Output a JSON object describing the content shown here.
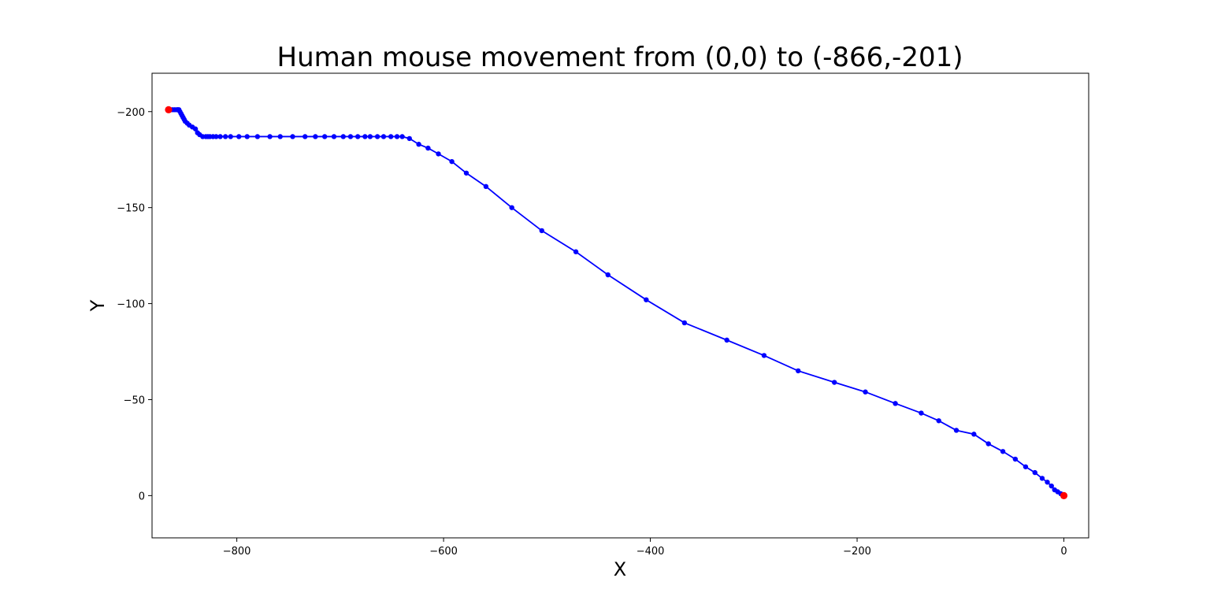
{
  "chart_data": {
    "type": "line",
    "title": "Human mouse movement from (0,0) to (-866,-201)",
    "xlabel": "X",
    "ylabel": "Y",
    "xlim": [
      -882,
      24
    ],
    "ylim": [
      22,
      -220
    ],
    "y_axis_inverted": true,
    "grid": false,
    "x_ticks": [
      -800,
      -600,
      -400,
      -200,
      0
    ],
    "y_ticks": [
      -200,
      -150,
      -100,
      -50,
      0
    ],
    "x_tick_labels": [
      "−800",
      "−600",
      "−400",
      "−200",
      "0"
    ],
    "y_tick_labels": [
      "−200",
      "−150",
      "−100",
      "−50",
      "0"
    ],
    "line_color": "#0000ff",
    "marker_color": "#0000ff",
    "endpoint_color": "#ff0000",
    "series": [
      {
        "x": [
          0,
          -3,
          -6,
          -9,
          -12,
          -16,
          -21,
          -28,
          -37,
          -47,
          -59,
          -73,
          -87,
          -104,
          -121,
          -138,
          -163,
          -192,
          -222,
          -257,
          -290,
          -326,
          -367,
          -404,
          -441,
          -472,
          -505,
          -534,
          -559,
          -578,
          -592,
          -605,
          -615,
          -624,
          -633,
          -640,
          -645,
          -651,
          -658,
          -664,
          -671,
          -676,
          -683,
          -690,
          -697,
          -706,
          -715,
          -724,
          -734,
          -746,
          -758,
          -768,
          -780,
          -790,
          -798,
          -806,
          -811,
          -816,
          -820,
          -823,
          -826,
          -828,
          -830,
          -833,
          -836,
          -838,
          -840,
          -843,
          -846,
          -848,
          -850,
          -851,
          -852,
          -853,
          -854,
          -855,
          -856,
          -857,
          -858,
          -860,
          -862,
          -864,
          -866
        ],
        "y": [
          0,
          -1,
          -2,
          -3,
          -5,
          -7,
          -9,
          -12,
          -15,
          -19,
          -23,
          -27,
          -32,
          -34,
          -39,
          -43,
          -48,
          -54,
          -59,
          -65,
          -73,
          -81,
          -90,
          -102,
          -115,
          -127,
          -138,
          -150,
          -161,
          -168,
          -174,
          -178,
          -181,
          -183,
          -186,
          -187,
          -187,
          -187,
          -187,
          -187,
          -187,
          -187,
          -187,
          -187,
          -187,
          -187,
          -187,
          -187,
          -187,
          -187,
          -187,
          -187,
          -187,
          -187,
          -187,
          -187,
          -187,
          -187,
          -187,
          -187,
          -187,
          -187,
          -187,
          -187,
          -188,
          -189,
          -191,
          -192,
          -193,
          -194,
          -195,
          -196,
          -197,
          -198,
          -199,
          -200,
          -201,
          -201,
          -201,
          -201,
          -201,
          -201,
          -201
        ]
      }
    ],
    "endpoints": [
      {
        "x": 0,
        "y": 0
      },
      {
        "x": -866,
        "y": -201
      }
    ]
  }
}
